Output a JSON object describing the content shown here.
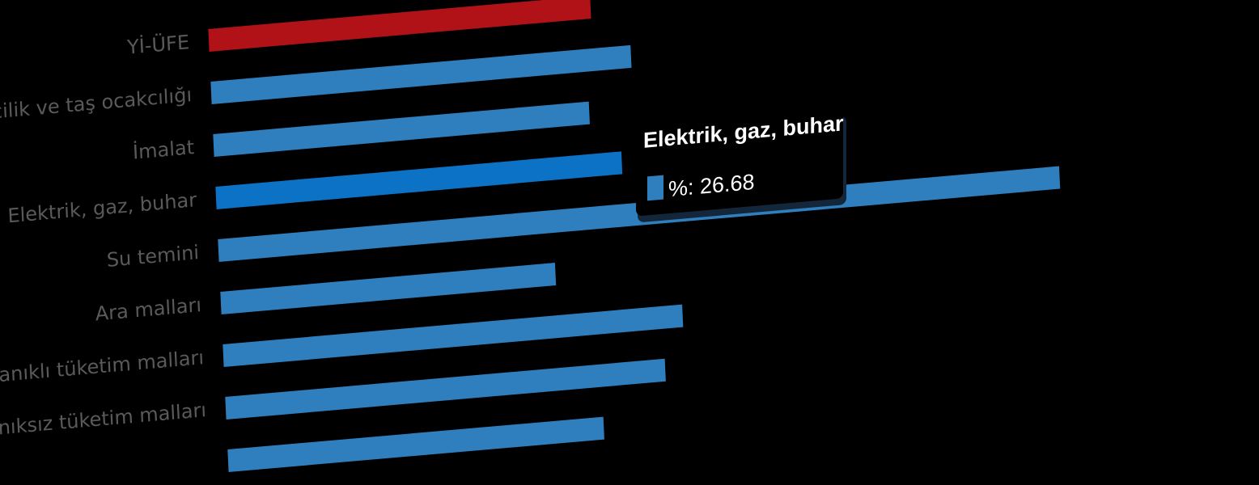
{
  "chart_data": {
    "type": "bar",
    "orientation": "horizontal",
    "categories": [
      "Yİ-ÜFE",
      "Madencilik ve taş ocakcılığı",
      "İmalat",
      "Elektrik, gaz, buhar",
      "Su temini",
      "Ara malları",
      "Dayanıklı tüketim malları",
      "Dayanıksız tüketim malları",
      ""
    ],
    "values": [
      25.1,
      27.6,
      24.7,
      26.68,
      55.3,
      22.0,
      30.2,
      28.9,
      24.7
    ],
    "colors": {
      "highlight": "#b01218",
      "default": "#2f7fbe",
      "hover": "#0b72c6"
    },
    "highlighted_index": 0,
    "hovered_index": 3,
    "title": "",
    "xlabel": "",
    "ylabel": "",
    "grid": false
  },
  "tooltip": {
    "title": "Elektrik, gaz, buhar",
    "series_label": "%",
    "value": "26.68"
  }
}
